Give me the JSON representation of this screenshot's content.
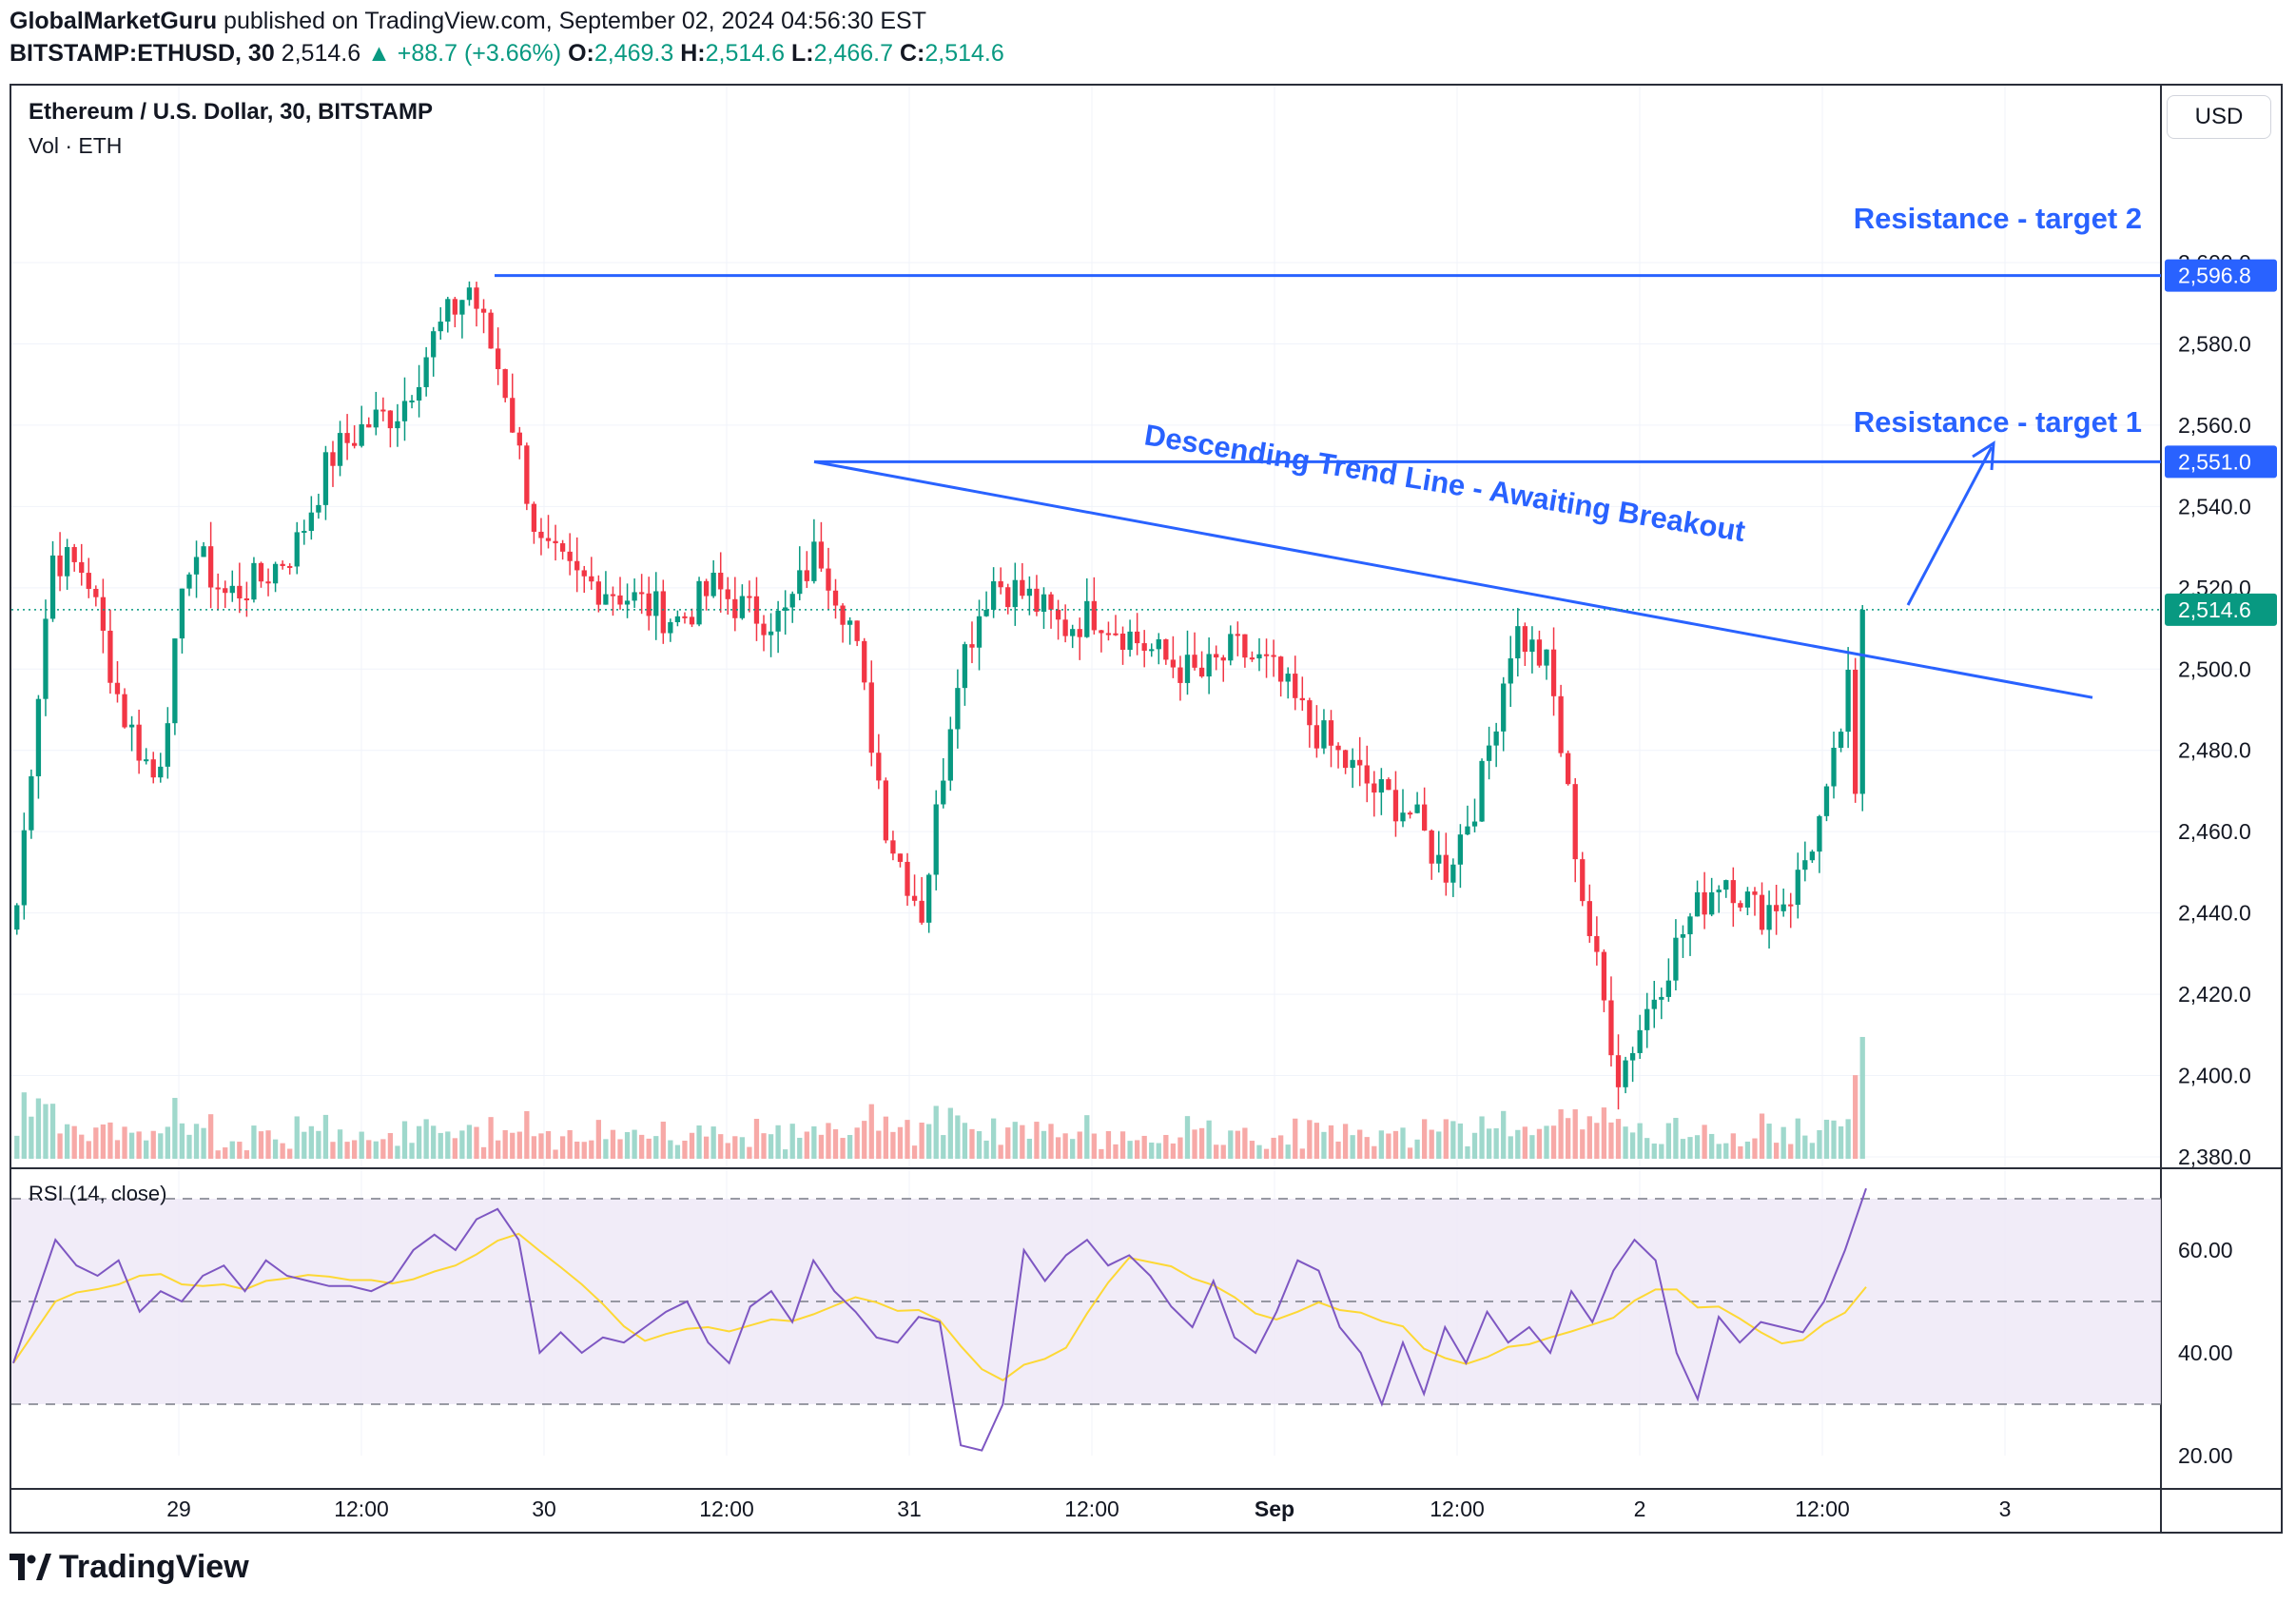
{
  "header": {
    "author": "GlobalMarketGuru",
    "published_text": "published on TradingView.com, September 02, 2024 04:56:30 EST",
    "symbol": "BITSTAMP:ETHUSD, 30",
    "last": "2,514.6",
    "change": "+88.7 (+3.66%)",
    "o_label": "O:",
    "o": "2,469.3",
    "h_label": "H:",
    "h": "2,514.6",
    "l_label": "L:",
    "l": "2,466.7",
    "c_label": "C:",
    "c": "2,514.6"
  },
  "legend": {
    "title": "Ethereum / U.S. Dollar, 30, BITSTAMP",
    "volume": "Vol · ETH"
  },
  "currency_button": "USD",
  "rsi_label": "RSI (14, close)",
  "brand": "TradingView",
  "colors": {
    "up": "#089981",
    "down": "#f23645",
    "line": "#2962ff",
    "rsi": "#7e57c2",
    "rsi_ma": "#fdd835"
  },
  "chart_data": {
    "type": "candlestick",
    "timeframe": "30",
    "y_axis": {
      "min": 2380,
      "max": 2600,
      "ticks": [
        "2,380.0",
        "2,400.0",
        "2,420.0",
        "2,440.0",
        "2,460.0",
        "2,480.0",
        "2,500.0",
        "2,520.0",
        "2,540.0",
        "2,560.0",
        "2,580.0",
        "2,600.0"
      ]
    },
    "x_axis": {
      "ticks": [
        "29",
        "12:00",
        "30",
        "12:00",
        "31",
        "12:00",
        "Sep",
        "12:00",
        "2",
        "12:00",
        "3"
      ]
    },
    "price_labels": [
      {
        "text": "2,596.8",
        "value": 2596.8,
        "color": "#2962ff"
      },
      {
        "text": "2,551.0",
        "value": 2551.0,
        "color": "#2962ff"
      },
      {
        "text": "2,514.6",
        "value": 2514.6,
        "color": "#089981"
      }
    ],
    "annotations": [
      {
        "text": "Resistance - target 2"
      },
      {
        "text": "Resistance - target 1"
      },
      {
        "text": "Descending Trend Line - Awaiting Breakout"
      }
    ],
    "resistance_levels": [
      2596.8,
      2551.0
    ],
    "trend_line": {
      "from": {
        "time": "Aug 30 18:00",
        "price": 2551.0
      },
      "to": {
        "time": "Sep 3 02:00",
        "price": 2493
      }
    },
    "closes_key": [
      2442,
      2528,
      2524,
      2490,
      2472,
      2530,
      2518,
      2522,
      2530,
      2552,
      2560,
      2564,
      2582,
      2594,
      2570,
      2530,
      2522,
      2520,
      2516,
      2512,
      2520,
      2514,
      2512,
      2530,
      2510,
      2460,
      2440,
      2500,
      2522,
      2518,
      2510,
      2514,
      2508,
      2502,
      2498,
      2505,
      2500,
      2488,
      2478,
      2470,
      2465,
      2450,
      2470,
      2510,
      2500,
      2442,
      2400,
      2420,
      2438,
      2450,
      2440,
      2445,
      2468,
      2514.6
    ],
    "rsi": {
      "ticks": [
        "20.00",
        "40.00",
        "60.00"
      ],
      "levels": [
        70,
        50,
        30
      ],
      "values": [
        38,
        50,
        62,
        57,
        55,
        58,
        48,
        52,
        50,
        55,
        57,
        52,
        58,
        55,
        54,
        53,
        53,
        52,
        54,
        60,
        63,
        60,
        66,
        68,
        62,
        40,
        44,
        40,
        43,
        42,
        45,
        48,
        50,
        42,
        38,
        49,
        52,
        46,
        58,
        52,
        48,
        43,
        42,
        47,
        46,
        22,
        21,
        30,
        60,
        54,
        59,
        62,
        57,
        59,
        55,
        49,
        45,
        54,
        43,
        40,
        48,
        58,
        56,
        45,
        40,
        30,
        42,
        32,
        45,
        38,
        48,
        42,
        45,
        40,
        52,
        46,
        56,
        62,
        58,
        40,
        31,
        47,
        42,
        46,
        45,
        44,
        50,
        60,
        72
      ]
    },
    "grid": true
  }
}
